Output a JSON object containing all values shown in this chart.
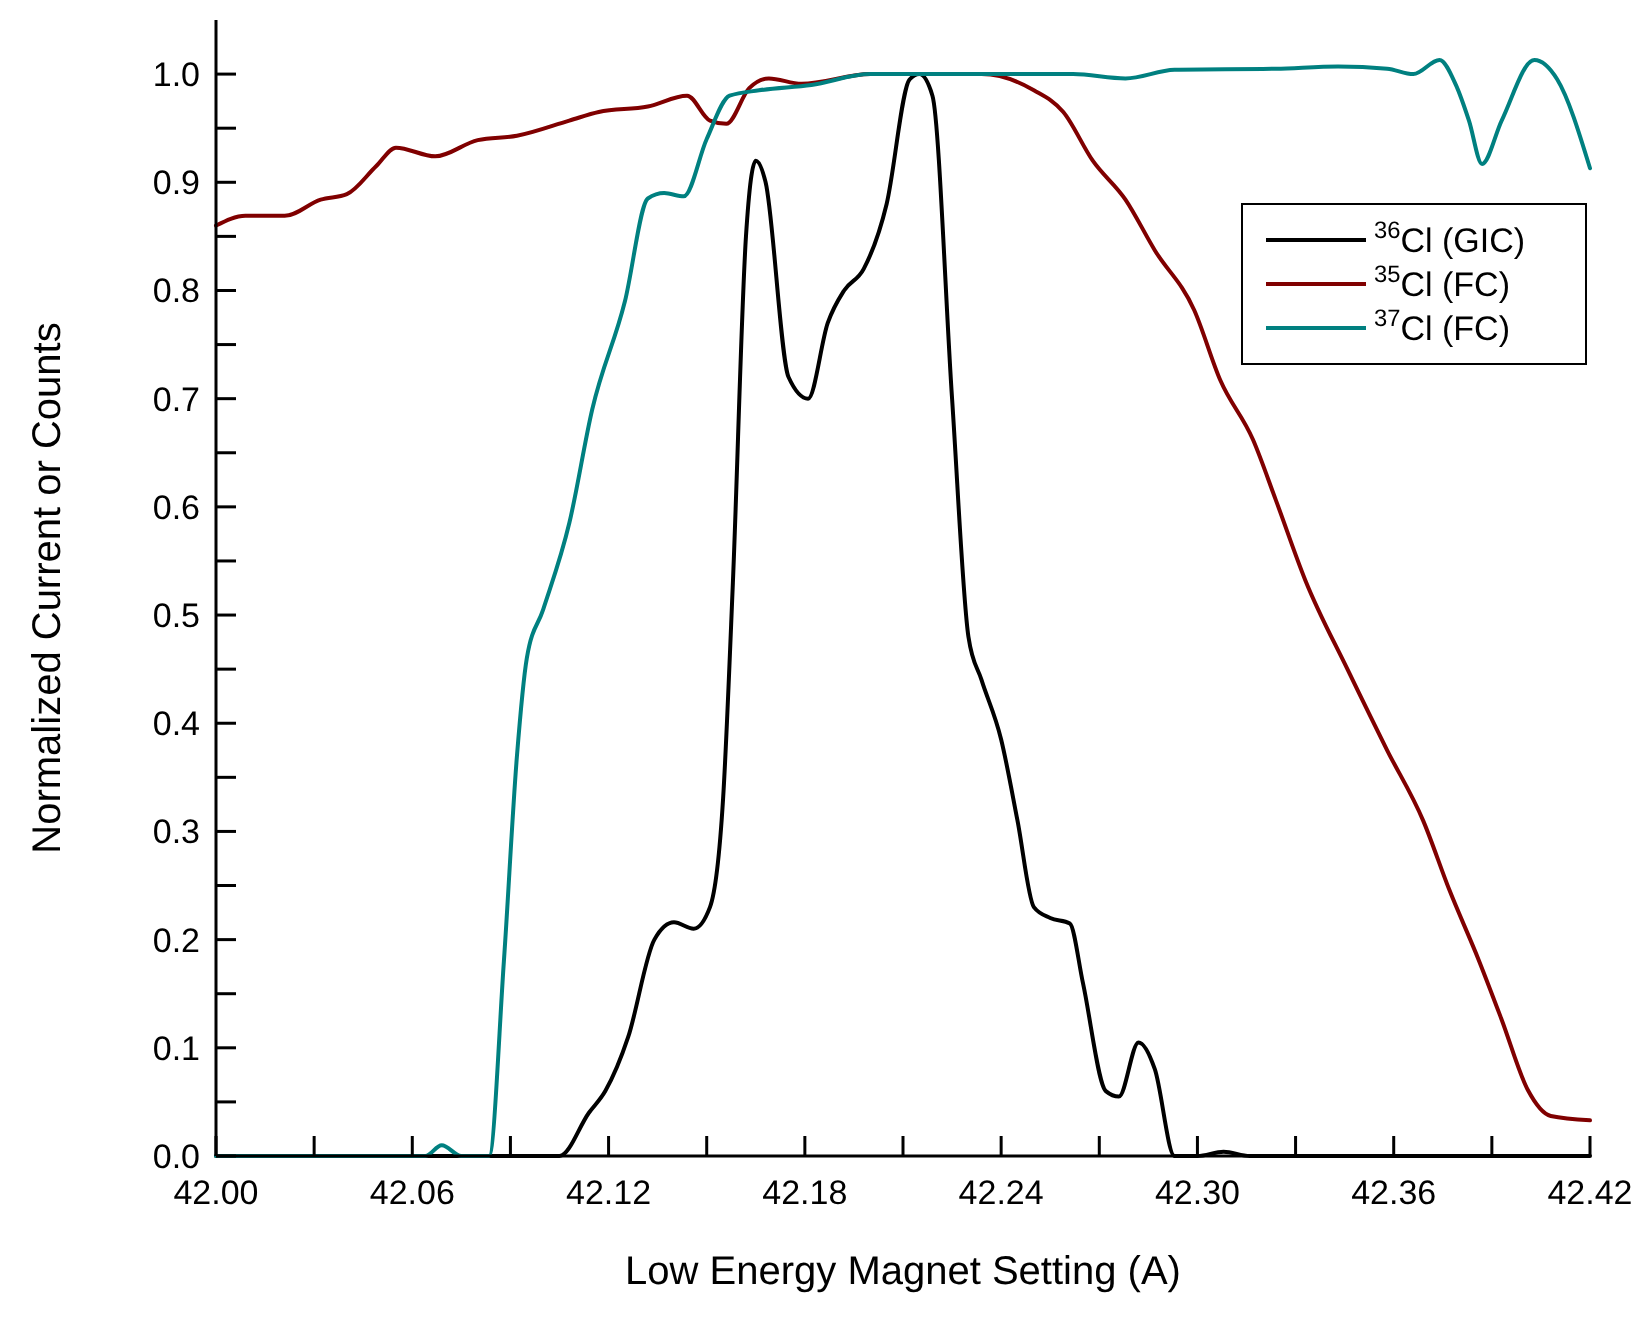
{
  "chart_data": {
    "type": "line",
    "xlabel": "Low Energy Magnet Setting (A)",
    "ylabel": "Normalized Current or Counts",
    "xlim": [
      42.0,
      42.42
    ],
    "ylim": [
      0,
      1.05
    ],
    "xticks": [
      {
        "value": 42.0,
        "label": "42.00"
      },
      {
        "value": 42.03,
        "label": null
      },
      {
        "value": 42.06,
        "label": "42.06"
      },
      {
        "value": 42.09,
        "label": null
      },
      {
        "value": 42.12,
        "label": "42.12"
      },
      {
        "value": 42.15,
        "label": null
      },
      {
        "value": 42.18,
        "label": "42.18"
      },
      {
        "value": 42.21,
        "label": null
      },
      {
        "value": 42.24,
        "label": "42.24"
      },
      {
        "value": 42.27,
        "label": null
      },
      {
        "value": 42.3,
        "label": "42.30"
      },
      {
        "value": 42.33,
        "label": null
      },
      {
        "value": 42.36,
        "label": "42.36"
      },
      {
        "value": 42.39,
        "label": null
      },
      {
        "value": 42.42,
        "label": "42.42"
      }
    ],
    "yticks": [
      {
        "value": 0,
        "label": "0.0"
      },
      {
        "value": 0.05,
        "label": null
      },
      {
        "value": 0.1,
        "label": "0.1"
      },
      {
        "value": 0.15,
        "label": null
      },
      {
        "value": 0.2,
        "label": "0.2"
      },
      {
        "value": 0.25,
        "label": null
      },
      {
        "value": 0.3,
        "label": "0.3"
      },
      {
        "value": 0.35,
        "label": null
      },
      {
        "value": 0.4,
        "label": "0.4"
      },
      {
        "value": 0.45,
        "label": null
      },
      {
        "value": 0.5,
        "label": "0.5"
      },
      {
        "value": 0.55,
        "label": null
      },
      {
        "value": 0.6,
        "label": "0.6"
      },
      {
        "value": 0.65,
        "label": null
      },
      {
        "value": 0.7,
        "label": "0.7"
      },
      {
        "value": 0.75,
        "label": null
      },
      {
        "value": 0.8,
        "label": "0.8"
      },
      {
        "value": 0.85,
        "label": null
      },
      {
        "value": 0.9,
        "label": "0.9"
      },
      {
        "value": 0.95,
        "label": null
      },
      {
        "value": 1.0,
        "label": "1.0"
      }
    ],
    "legend": "top right",
    "grid": false,
    "line_style": "solid",
    "series": [
      {
        "name": "$^{36}$Cl (GIC)",
        "color": "#000000",
        "x": [
          42.0,
          42.06,
          42.105,
          42.114,
          42.119,
          42.126,
          42.134,
          42.14,
          42.146,
          42.151,
          42.155,
          42.158,
          42.162,
          42.165,
          42.168,
          42.175,
          42.181,
          42.187,
          42.192,
          42.198,
          42.205,
          42.212,
          42.215,
          42.219,
          42.225,
          42.23,
          42.234,
          42.24,
          42.245,
          42.25,
          42.255,
          42.261,
          42.265,
          42.272,
          42.276,
          42.282,
          42.287,
          42.293,
          42.3,
          42.308,
          42.316,
          42.42
        ],
        "values": [
          0,
          0,
          0,
          0.04,
          0.06,
          0.11,
          0.2,
          0.216,
          0.21,
          0.23,
          0.33,
          0.53,
          0.85,
          0.92,
          0.9,
          0.72,
          0.7,
          0.77,
          0.8,
          0.82,
          0.88,
          0.995,
          1.0,
          0.98,
          0.7,
          0.48,
          0.44,
          0.385,
          0.31,
          0.23,
          0.22,
          0.215,
          0.16,
          0.06,
          0.055,
          0.105,
          0.08,
          0,
          0,
          0.004,
          0,
          0
        ]
      },
      {
        "name": "$^{35}$Cl (FC)",
        "color": "#800000",
        "x": [
          42.0,
          42.009,
          42.021,
          42.032,
          42.04,
          42.049,
          42.055,
          42.067,
          42.08,
          42.092,
          42.108,
          42.117,
          42.132,
          42.144,
          42.151,
          42.156,
          42.163,
          42.169,
          42.179,
          42.2,
          42.234,
          42.25,
          42.259,
          42.268,
          42.278,
          42.287,
          42.299,
          42.307,
          42.317,
          42.324,
          42.333,
          42.346,
          42.358,
          42.369,
          42.377,
          42.386,
          42.393,
          42.401,
          42.408,
          42.42
        ],
        "values": [
          0.86,
          0.869,
          0.869,
          0.884,
          0.889,
          0.915,
          0.932,
          0.924,
          0.939,
          0.943,
          0.957,
          0.965,
          0.97,
          0.98,
          0.957,
          0.954,
          0.987,
          0.996,
          0.991,
          1.0,
          1.0,
          0.985,
          0.965,
          0.92,
          0.884,
          0.837,
          0.782,
          0.717,
          0.662,
          0.606,
          0.532,
          0.449,
          0.375,
          0.31,
          0.246,
          0.181,
          0.126,
          0.061,
          0.037,
          0.033
        ]
      },
      {
        "name": "$^{37}$Cl (FC)",
        "color": "#008080",
        "x": [
          42.0,
          42.064,
          42.069,
          42.075,
          42.0835,
          42.088,
          42.092,
          42.095,
          42.1,
          42.108,
          42.115,
          42.125,
          42.132,
          42.137,
          42.143,
          42.15,
          42.157,
          42.166,
          42.182,
          42.2,
          42.237,
          42.262,
          42.278,
          42.293,
          42.324,
          42.343,
          42.358,
          42.366,
          42.374,
          42.379,
          42.383,
          42.387,
          42.393,
          42.403,
          42.41,
          42.42
        ],
        "values": [
          0,
          0,
          0.01,
          0,
          0,
          0.18,
          0.37,
          0.46,
          0.505,
          0.585,
          0.69,
          0.79,
          0.885,
          0.89,
          0.887,
          0.94,
          0.98,
          0.985,
          0.99,
          1.0,
          1.0,
          1.0,
          0.996,
          1.004,
          1.005,
          1.007,
          1.005,
          1.0,
          1.013,
          0.99,
          0.957,
          0.917,
          0.957,
          1.013,
          0.995,
          0.913
        ]
      }
    ]
  }
}
